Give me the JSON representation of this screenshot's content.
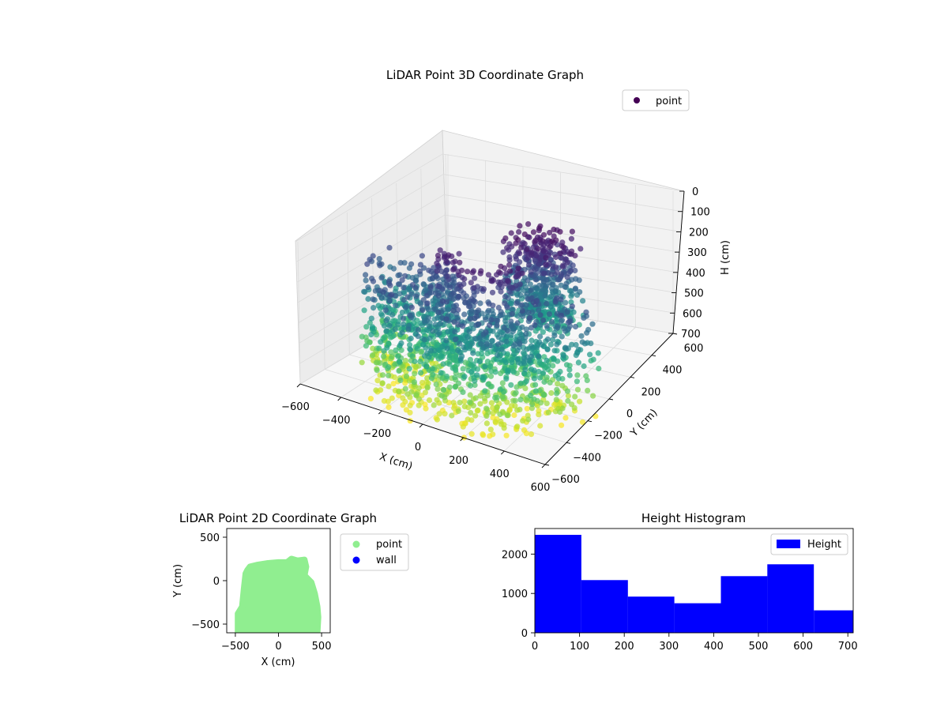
{
  "chart_data": [
    {
      "type": "scatter3d",
      "title": "LiDAR Point 3D Coordinate Graph",
      "xlabel": "X (cm)",
      "ylabel": "Y (cm)",
      "zlabel": "H (cm)",
      "xlim": [
        -600,
        600
      ],
      "ylim": [
        -600,
        600
      ],
      "zlim": [
        0,
        700
      ],
      "zaxis_inverted": true,
      "x_ticks": [
        "−600",
        "−400",
        "−200",
        "0",
        "200",
        "400",
        "600"
      ],
      "y_ticks": [
        "−600",
        "−400",
        "−200",
        "0",
        "200",
        "400",
        "600"
      ],
      "z_ticks": [
        "0",
        "100",
        "200",
        "300",
        "400",
        "500",
        "600",
        "700"
      ],
      "colormap": "viridis",
      "grid": true,
      "legend": {
        "position": "top-right",
        "entries": [
          "point"
        ]
      },
      "series": [
        {
          "name": "point",
          "color": "#440154"
        }
      ]
    },
    {
      "type": "scatter",
      "title": "LiDAR Point 2D Coordinate Graph",
      "xlabel": "X (cm)",
      "ylabel": "Y (cm)",
      "xlim": [
        -600,
        600
      ],
      "ylim": [
        -600,
        600
      ],
      "x_ticks": [
        "−500",
        "0",
        "500"
      ],
      "y_ticks": [
        "−500",
        "0",
        "500"
      ],
      "legend": {
        "position": "outside-right",
        "entries": [
          "point",
          "wall"
        ]
      },
      "series": [
        {
          "name": "point",
          "color": "#90ee90",
          "outline": [
            [
              -470,
              -600
            ],
            [
              -470,
              -380
            ],
            [
              -420,
              -300
            ],
            [
              -400,
              -100
            ],
            [
              -380,
              80
            ],
            [
              -360,
              120
            ],
            [
              -330,
              160
            ],
            [
              -250,
              180
            ],
            [
              -120,
              200
            ],
            [
              0,
              210
            ],
            [
              100,
              210
            ],
            [
              150,
              250
            ],
            [
              220,
              230
            ],
            [
              300,
              240
            ],
            [
              320,
              160
            ],
            [
              300,
              60
            ],
            [
              380,
              -20
            ],
            [
              420,
              -150
            ],
            [
              450,
              -300
            ],
            [
              460,
              -420
            ],
            [
              450,
              -600
            ]
          ]
        },
        {
          "name": "wall",
          "color": "#0000ff"
        }
      ]
    },
    {
      "type": "bar",
      "title": "Height Histogram",
      "xlim": [
        0,
        712
      ],
      "ylim": [
        0,
        2650
      ],
      "x_ticks": [
        "0",
        "100",
        "200",
        "300",
        "400",
        "500",
        "600",
        "700"
      ],
      "y_ticks": [
        "0",
        "1000",
        "2000"
      ],
      "legend": {
        "position": "top-right",
        "entries": [
          "Height"
        ]
      },
      "bin_edges": [
        0,
        104,
        208,
        312,
        416,
        520,
        624,
        712
      ],
      "values": [
        2490,
        1340,
        920,
        750,
        1440,
        1740,
        570
      ],
      "series": [
        {
          "name": "Height",
          "color": "#0000ff"
        }
      ]
    }
  ]
}
